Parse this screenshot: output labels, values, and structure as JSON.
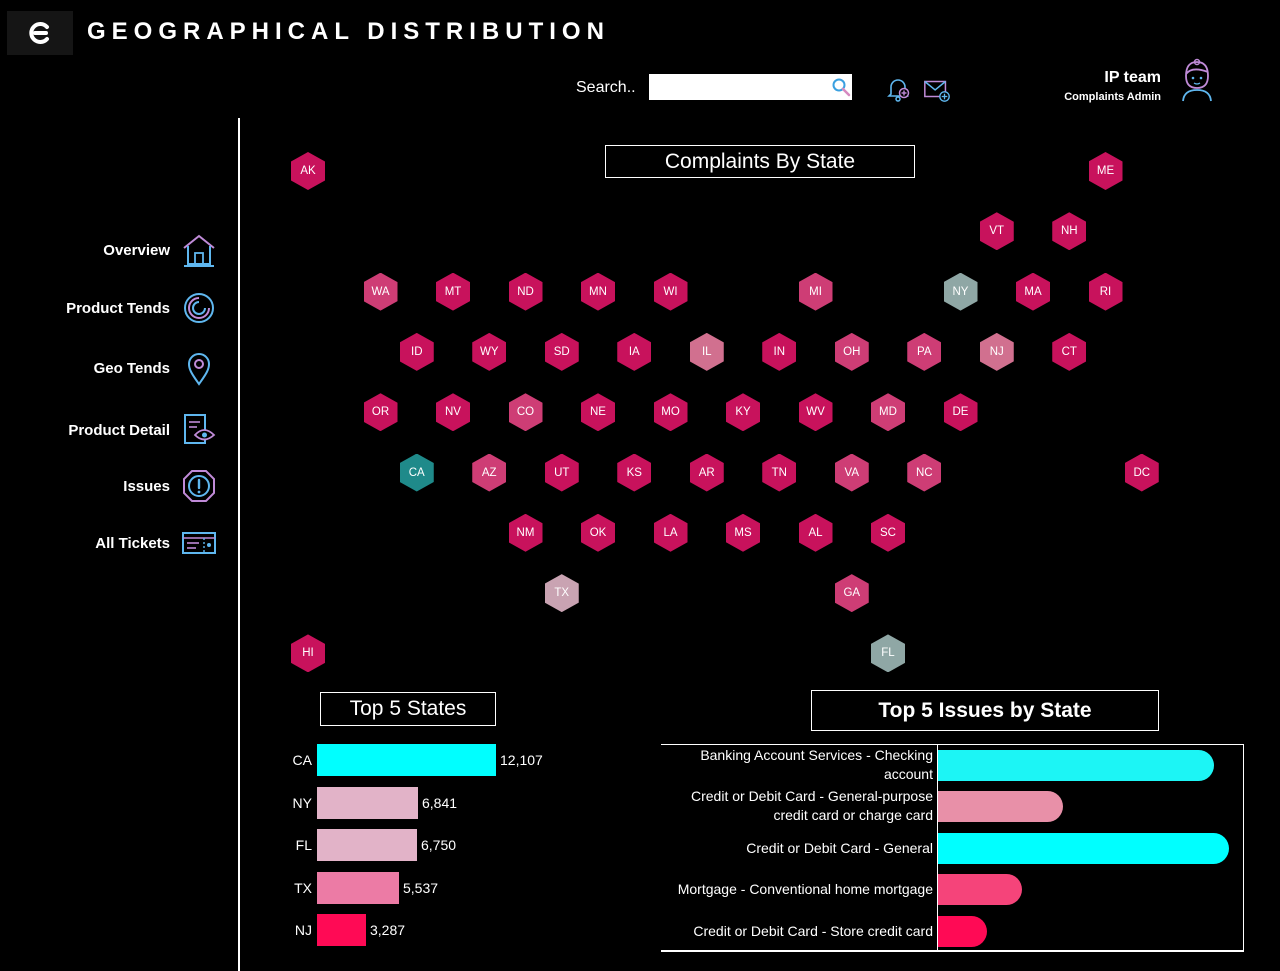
{
  "header": {
    "title": "GEOGRAPHICAL DISTRIBUTION",
    "search_label": "Search..",
    "search_placeholder": "",
    "user_name": "IP team",
    "user_role": "Complaints Admin"
  },
  "nav": [
    {
      "label": "Overview",
      "icon": "home-icon"
    },
    {
      "label": "Product Tends",
      "icon": "trend-swirl-icon"
    },
    {
      "label": "Geo Tends",
      "icon": "map-pin-icon"
    },
    {
      "label": "Product Detail",
      "icon": "document-eye-icon"
    },
    {
      "label": "Issues",
      "icon": "alert-shield-icon"
    },
    {
      "label": "All Tickets",
      "icon": "ticket-icon"
    }
  ],
  "map": {
    "title": "Complaints By State",
    "colors": {
      "high": "#C8125C",
      "mid": "#CE3D75",
      "low": "#D1708F",
      "pale": "#C9A3B2",
      "grey": "#8FA7A5",
      "teal": "#1F8A8A"
    },
    "states": [
      {
        "code": "AK",
        "level": "high"
      },
      {
        "code": "ME",
        "level": "high"
      },
      {
        "code": "VT",
        "level": "high"
      },
      {
        "code": "NH",
        "level": "high"
      },
      {
        "code": "WA",
        "level": "mid"
      },
      {
        "code": "MT",
        "level": "high"
      },
      {
        "code": "ND",
        "level": "high"
      },
      {
        "code": "MN",
        "level": "high"
      },
      {
        "code": "WI",
        "level": "high"
      },
      {
        "code": "MI",
        "level": "mid"
      },
      {
        "code": "NY",
        "level": "grey"
      },
      {
        "code": "MA",
        "level": "high"
      },
      {
        "code": "RI",
        "level": "high"
      },
      {
        "code": "ID",
        "level": "high"
      },
      {
        "code": "WY",
        "level": "high"
      },
      {
        "code": "SD",
        "level": "high"
      },
      {
        "code": "IA",
        "level": "high"
      },
      {
        "code": "IL",
        "level": "low"
      },
      {
        "code": "IN",
        "level": "high"
      },
      {
        "code": "OH",
        "level": "mid"
      },
      {
        "code": "PA",
        "level": "mid"
      },
      {
        "code": "NJ",
        "level": "low"
      },
      {
        "code": "CT",
        "level": "high"
      },
      {
        "code": "OR",
        "level": "high"
      },
      {
        "code": "NV",
        "level": "high"
      },
      {
        "code": "CO",
        "level": "mid"
      },
      {
        "code": "NE",
        "level": "high"
      },
      {
        "code": "MO",
        "level": "high"
      },
      {
        "code": "KY",
        "level": "high"
      },
      {
        "code": "WV",
        "level": "high"
      },
      {
        "code": "MD",
        "level": "mid"
      },
      {
        "code": "DE",
        "level": "high"
      },
      {
        "code": "CA",
        "level": "teal"
      },
      {
        "code": "AZ",
        "level": "mid"
      },
      {
        "code": "UT",
        "level": "high"
      },
      {
        "code": "KS",
        "level": "high"
      },
      {
        "code": "AR",
        "level": "high"
      },
      {
        "code": "TN",
        "level": "high"
      },
      {
        "code": "VA",
        "level": "mid"
      },
      {
        "code": "NC",
        "level": "mid"
      },
      {
        "code": "DC",
        "level": "high"
      },
      {
        "code": "NM",
        "level": "high"
      },
      {
        "code": "OK",
        "level": "high"
      },
      {
        "code": "LA",
        "level": "high"
      },
      {
        "code": "MS",
        "level": "high"
      },
      {
        "code": "AL",
        "level": "high"
      },
      {
        "code": "SC",
        "level": "high"
      },
      {
        "code": "TX",
        "level": "pale"
      },
      {
        "code": "GA",
        "level": "mid"
      },
      {
        "code": "HI",
        "level": "high"
      },
      {
        "code": "FL",
        "level": "grey"
      }
    ]
  },
  "top_states": {
    "title": "Top 5 States",
    "items": [
      {
        "state": "CA",
        "value": 12107,
        "value_label": "12,107",
        "color": "#00FFFF"
      },
      {
        "state": "NY",
        "value": 6841,
        "value_label": "6,841",
        "color": "#E2B3C8"
      },
      {
        "state": "FL",
        "value": 6750,
        "value_label": "6,750",
        "color": "#E2B3C8"
      },
      {
        "state": "TX",
        "value": 5537,
        "value_label": "5,537",
        "color": "#EC7BA5"
      },
      {
        "state": "NJ",
        "value": 3287,
        "value_label": "3,287",
        "color": "#FF0A55"
      }
    ]
  },
  "top_issues": {
    "title": "Top 5 Issues by State",
    "items": [
      {
        "label": "Banking Account Services - Checking account",
        "share": 0.95,
        "color": "#1CF5F5"
      },
      {
        "label": "Credit or Debit Card - General-purpose credit card or charge card",
        "share": 0.43,
        "color": "#E890A8"
      },
      {
        "label": "Credit or Debit Card - General",
        "share": 1.0,
        "color": "#00FFFF"
      },
      {
        "label": "Mortgage - Conventional home mortgage",
        "share": 0.29,
        "color": "#F5447A"
      },
      {
        "label": "Credit or Debit Card - Store credit card",
        "share": 0.17,
        "color": "#FF0A55"
      }
    ]
  }
}
